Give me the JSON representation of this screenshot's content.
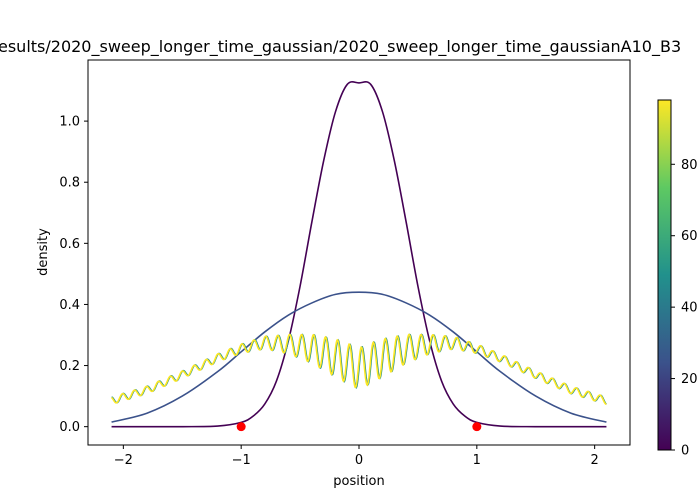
{
  "chart_data": {
    "type": "line",
    "title": "esults/2020_sweep_longer_time_gaussian/2020_sweep_longer_time_gaussianA10_B3",
    "xlabel": "position",
    "ylabel": "density",
    "xlim": [
      -2.3,
      2.3
    ],
    "ylim": [
      -0.06,
      1.2
    ],
    "x_ticks": [
      -2,
      -1,
      0,
      1,
      2
    ],
    "x_tick_labels": [
      "−2",
      "−1",
      "0",
      "1",
      "2"
    ],
    "y_ticks": [
      0.0,
      0.2,
      0.4,
      0.6,
      0.8,
      1.0
    ],
    "y_tick_labels": [
      "0.0",
      "0.2",
      "0.4",
      "0.6",
      "0.8",
      "1.0"
    ],
    "grid": false,
    "series": [
      {
        "color": "#440154",
        "x": [
          -2.1,
          -1.8,
          -1.5,
          -1.2,
          -1.0,
          -0.9,
          -0.8,
          -0.7,
          -0.6,
          -0.5,
          -0.4,
          -0.3,
          -0.2,
          -0.1,
          0.0,
          0.1,
          0.2,
          0.3,
          0.4,
          0.5,
          0.6,
          0.7,
          0.8,
          0.9,
          1.0,
          1.2,
          1.5,
          1.8,
          2.1
        ],
        "y": [
          0.0,
          0.0,
          0.0,
          0.002,
          0.014,
          0.034,
          0.074,
          0.15,
          0.28,
          0.46,
          0.67,
          0.87,
          1.03,
          1.12,
          1.125,
          1.12,
          1.03,
          0.87,
          0.67,
          0.46,
          0.28,
          0.15,
          0.074,
          0.034,
          0.014,
          0.002,
          0.0,
          0.0,
          0.0
        ]
      },
      {
        "color": "#3b528b",
        "x": [
          -2.1,
          -1.8,
          -1.5,
          -1.2,
          -1.0,
          -0.8,
          -0.6,
          -0.4,
          -0.2,
          0.0,
          0.2,
          0.4,
          0.6,
          0.8,
          1.0,
          1.2,
          1.5,
          1.8,
          2.1
        ],
        "y": [
          0.015,
          0.044,
          0.1,
          0.18,
          0.245,
          0.31,
          0.365,
          0.405,
          0.433,
          0.44,
          0.433,
          0.405,
          0.365,
          0.31,
          0.245,
          0.18,
          0.1,
          0.044,
          0.015
        ]
      },
      {
        "color": "#21918c",
        "x": [
          -2.1,
          -1.8,
          -1.5,
          -1.2,
          -1.0,
          -0.8,
          -0.6,
          -0.4,
          -0.2,
          0.0,
          0.2,
          0.4,
          0.6,
          0.8,
          1.0,
          1.2,
          1.5,
          1.8,
          2.1
        ],
        "y": [
          0.085,
          0.12,
          0.17,
          0.225,
          0.255,
          0.275,
          0.27,
          0.255,
          0.225,
          0.19,
          0.225,
          0.255,
          0.27,
          0.275,
          0.255,
          0.225,
          0.17,
          0.12,
          0.085
        ]
      },
      {
        "color": "#fde725",
        "x": [
          -2.1,
          -1.8,
          -1.5,
          -1.2,
          -1.0,
          -0.8,
          -0.6,
          -0.4,
          -0.2,
          0.0,
          0.2,
          0.4,
          0.6,
          0.8,
          1.0,
          1.2,
          1.5,
          1.8,
          2.1
        ],
        "y": [
          0.085,
          0.12,
          0.17,
          0.225,
          0.255,
          0.275,
          0.27,
          0.255,
          0.225,
          0.19,
          0.225,
          0.255,
          0.27,
          0.275,
          0.255,
          0.225,
          0.17,
          0.12,
          0.085
        ]
      }
    ],
    "markers": {
      "color": "#ff0000",
      "x": [
        -1,
        1
      ],
      "y": [
        0,
        0
      ]
    },
    "colorbar": {
      "colormap": [
        "#440154",
        "#3b528b",
        "#21918c",
        "#5ec962",
        "#fde725"
      ],
      "min": 0,
      "max": 98,
      "ticks": [
        0,
        20,
        40,
        60,
        80
      ],
      "tick_labels": [
        "0",
        "20",
        "40",
        "60",
        "80"
      ]
    }
  }
}
